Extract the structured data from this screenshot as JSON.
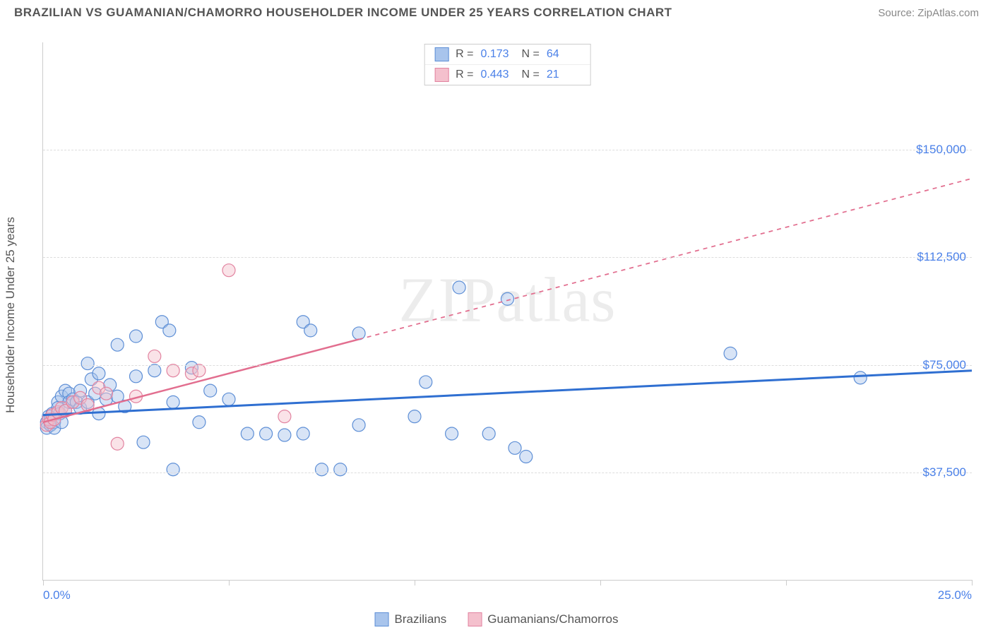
{
  "header": {
    "title": "BRAZILIAN VS GUAMANIAN/CHAMORRO HOUSEHOLDER INCOME UNDER 25 YEARS CORRELATION CHART",
    "source_label": "Source:",
    "source_name": "ZipAtlas.com"
  },
  "chart": {
    "type": "scatter",
    "ylabel": "Householder Income Under 25 years",
    "xlim": [
      0,
      25
    ],
    "ylim": [
      0,
      187500
    ],
    "yticks": [
      37500,
      75000,
      112500,
      150000
    ],
    "ytick_labels": [
      "$37,500",
      "$75,000",
      "$112,500",
      "$150,000"
    ],
    "xtick_positions": [
      0,
      5,
      10,
      15,
      20,
      25
    ],
    "x_left_label": "0.0%",
    "x_right_label": "25.0%",
    "background_color": "#ffffff",
    "grid_color": "#dddddd",
    "marker_radius": 9,
    "marker_stroke_width": 1.2,
    "marker_opacity": 0.45,
    "watermark": "ZIPatlas",
    "series": [
      {
        "name": "Brazilians",
        "fill": "#a8c4ec",
        "stroke": "#5e8fd6",
        "line_color": "#2f6fd1",
        "line_width": 3,
        "dash_after_x": 25,
        "R": "0.173",
        "N": "64",
        "regression": {
          "y_at_x0": 57500,
          "y_at_x25": 73000
        },
        "points": [
          [
            0.1,
            55000
          ],
          [
            0.1,
            53000
          ],
          [
            0.15,
            57000
          ],
          [
            0.2,
            56000
          ],
          [
            0.2,
            54000
          ],
          [
            0.25,
            58000
          ],
          [
            0.3,
            55000
          ],
          [
            0.3,
            53000
          ],
          [
            0.4,
            62000
          ],
          [
            0.4,
            60000
          ],
          [
            0.45,
            58000
          ],
          [
            0.5,
            64000
          ],
          [
            0.5,
            55000
          ],
          [
            0.6,
            66000
          ],
          [
            0.6,
            59000
          ],
          [
            0.7,
            65000
          ],
          [
            0.7,
            62000
          ],
          [
            0.8,
            63000
          ],
          [
            0.9,
            62000
          ],
          [
            1.0,
            66000
          ],
          [
            1.0,
            60000
          ],
          [
            1.2,
            75500
          ],
          [
            1.2,
            62000
          ],
          [
            1.3,
            70000
          ],
          [
            1.4,
            65000
          ],
          [
            1.5,
            72000
          ],
          [
            1.5,
            58000
          ],
          [
            1.7,
            63000
          ],
          [
            1.8,
            68000
          ],
          [
            2.0,
            64000
          ],
          [
            2.0,
            82000
          ],
          [
            2.2,
            60500
          ],
          [
            2.5,
            85000
          ],
          [
            2.5,
            71000
          ],
          [
            2.7,
            48000
          ],
          [
            3.0,
            73000
          ],
          [
            3.2,
            90000
          ],
          [
            3.4,
            87000
          ],
          [
            3.5,
            62000
          ],
          [
            3.5,
            38500
          ],
          [
            4.0,
            74000
          ],
          [
            4.2,
            55000
          ],
          [
            4.5,
            66000
          ],
          [
            5.0,
            63000
          ],
          [
            5.5,
            51000
          ],
          [
            6.0,
            51000
          ],
          [
            6.5,
            50500
          ],
          [
            7.0,
            51000
          ],
          [
            7.0,
            90000
          ],
          [
            7.2,
            87000
          ],
          [
            7.5,
            38500
          ],
          [
            8.0,
            38500
          ],
          [
            8.5,
            86000
          ],
          [
            8.5,
            54000
          ],
          [
            10.0,
            57000
          ],
          [
            10.3,
            69000
          ],
          [
            11.0,
            51000
          ],
          [
            11.2,
            102000
          ],
          [
            12.0,
            51000
          ],
          [
            12.5,
            98000
          ],
          [
            12.7,
            46000
          ],
          [
            13.0,
            43000
          ],
          [
            18.5,
            79000
          ],
          [
            22.0,
            70500
          ]
        ]
      },
      {
        "name": "Guamanians/Chamorros",
        "fill": "#f4c0cd",
        "stroke": "#e283a0",
        "line_color": "#e26e8f",
        "line_width": 2.5,
        "dash_after_x": 8.5,
        "R": "0.443",
        "N": "21",
        "regression": {
          "y_at_x0": 55000,
          "y_at_x25": 140000
        },
        "points": [
          [
            0.1,
            54000
          ],
          [
            0.15,
            56000
          ],
          [
            0.2,
            55000
          ],
          [
            0.25,
            57500
          ],
          [
            0.3,
            56000
          ],
          [
            0.4,
            58500
          ],
          [
            0.5,
            60000
          ],
          [
            0.6,
            59000
          ],
          [
            0.8,
            62000
          ],
          [
            1.0,
            63500
          ],
          [
            1.2,
            61000
          ],
          [
            1.5,
            67000
          ],
          [
            1.7,
            65000
          ],
          [
            2.0,
            47500
          ],
          [
            2.5,
            64000
          ],
          [
            3.0,
            78000
          ],
          [
            3.5,
            73000
          ],
          [
            4.0,
            72000
          ],
          [
            4.2,
            73000
          ],
          [
            5.0,
            108000
          ],
          [
            6.5,
            57000
          ]
        ]
      }
    ]
  },
  "legend_top": {
    "R_label": "R =",
    "N_label": "N ="
  },
  "legend_bottom": {
    "items": [
      "Brazilians",
      "Guamanians/Chamorros"
    ]
  }
}
